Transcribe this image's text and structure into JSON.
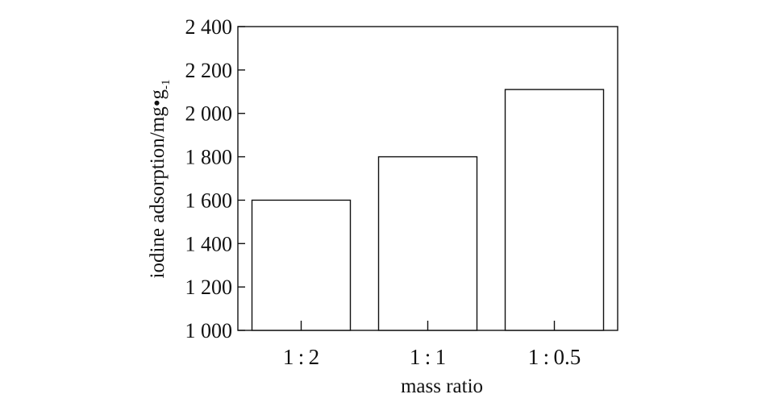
{
  "chart_data": {
    "type": "bar",
    "categories": [
      "1 : 2",
      "1 : 1",
      "1 : 0.5"
    ],
    "values": [
      1600,
      1800,
      2110
    ],
    "xlabel": "mass ratio",
    "ylabel": "iodine adsorption/mg•g",
    "ylabel_sub": "-1",
    "ylim": [
      1000,
      2400
    ],
    "yticks": [
      1000,
      1200,
      1400,
      1600,
      1800,
      2000,
      2200,
      2400
    ],
    "ytick_labels": [
      "1 000",
      "1 200",
      "1 400",
      "1 600",
      "1 800",
      "2 000",
      "2 200",
      "2 400"
    ],
    "grid": false,
    "colors": {
      "bar_fill": "#ffffff",
      "bar_stroke": "#111111",
      "axis": "#111111"
    }
  }
}
